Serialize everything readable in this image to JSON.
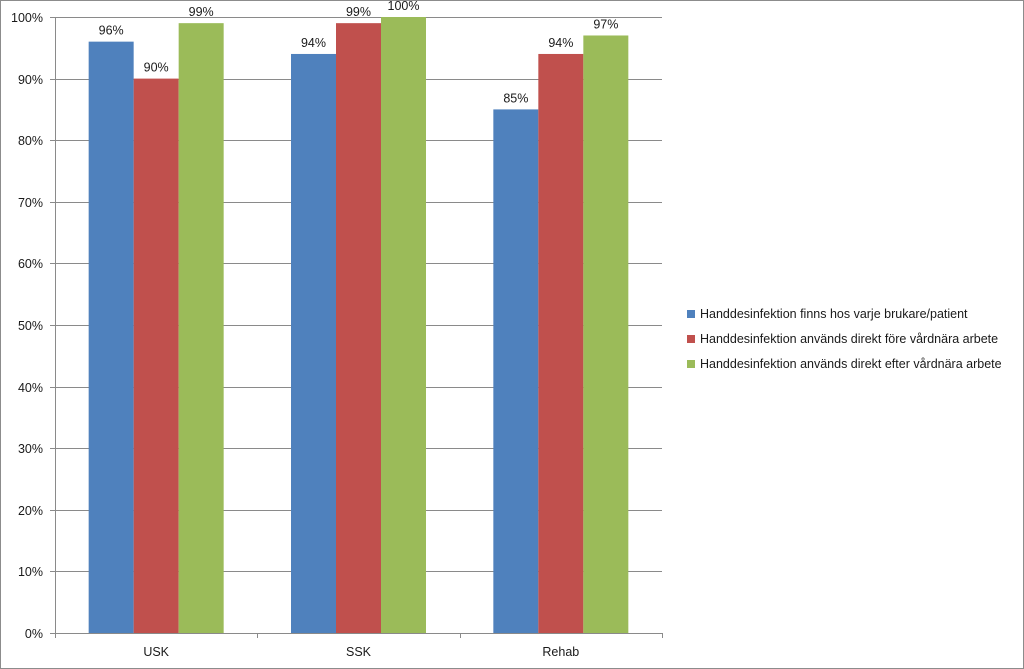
{
  "chart_data": {
    "type": "bar",
    "title": "",
    "xlabel": "",
    "ylabel": "",
    "categories": [
      "USK",
      "SSK",
      "Rehab"
    ],
    "ylim": [
      0,
      100
    ],
    "yticks": [
      0,
      10,
      20,
      30,
      40,
      50,
      60,
      70,
      80,
      90,
      100
    ],
    "ytick_labels": [
      "0%",
      "10%",
      "20%",
      "30%",
      "40%",
      "50%",
      "60%",
      "70%",
      "80%",
      "90%",
      "100%"
    ],
    "grid": true,
    "legend_position": "right",
    "series": [
      {
        "name": "Handdesinfektion finns hos varje brukare/patient",
        "color": "#4f81bd",
        "values": [
          96,
          94,
          85
        ],
        "labels": [
          "96%",
          "94%",
          "85%"
        ]
      },
      {
        "name": "Handdesinfektion används direkt före vårdnära arbete",
        "color": "#c0504d",
        "values": [
          90,
          99,
          94
        ],
        "labels": [
          "90%",
          "99%",
          "94%"
        ]
      },
      {
        "name": "Handdesinfektion används direkt efter vårdnära arbete",
        "color": "#9bbb59",
        "values": [
          99,
          100,
          97
        ],
        "labels": [
          "99%",
          "100%",
          "97%"
        ]
      }
    ]
  }
}
